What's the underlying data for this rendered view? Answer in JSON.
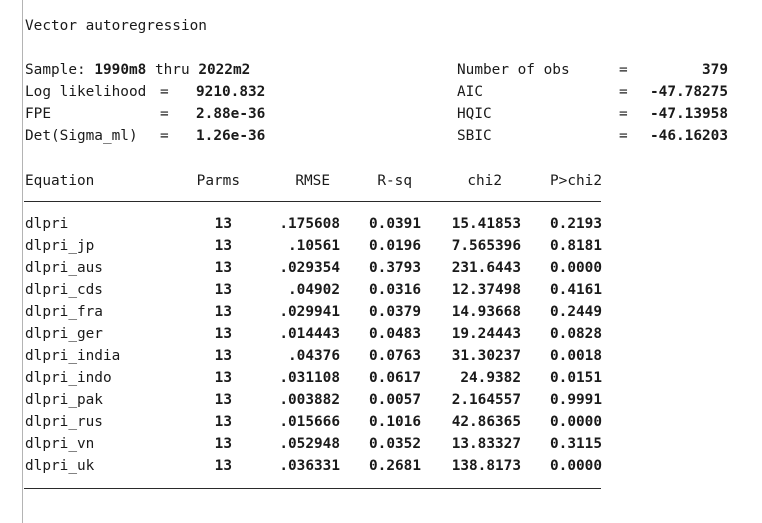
{
  "title": "Vector autoregression",
  "header": {
    "sample_label": "Sample:",
    "sample_start": "1990m8",
    "sample_thru": "thru",
    "sample_end": "2022m2",
    "loglik_label": "Log likelihood",
    "loglik_value": "9210.832",
    "fpe_label": "FPE",
    "fpe_value": "2.88e-36",
    "detsigma_label": "Det(Sigma_ml)",
    "detsigma_value": "1.26e-36",
    "nobs_label": "Number of obs",
    "nobs_value": "379",
    "aic_label": "AIC",
    "aic_value": "-47.78275",
    "hqic_label": "HQIC",
    "hqic_value": "-47.13958",
    "sbic_label": "SBIC",
    "sbic_value": "-46.16203",
    "eq": "="
  },
  "table": {
    "columns": [
      "Equation",
      "Parms",
      "RMSE",
      "R-sq",
      "chi2",
      "P>chi2"
    ],
    "rows": [
      {
        "eq": "dlpri",
        "parms": "13",
        "rmse": ".175608",
        "rsq": "0.0391",
        "chi2": "15.41853",
        "p": "0.2193"
      },
      {
        "eq": "dlpri_jp",
        "parms": "13",
        "rmse": ".10561",
        "rsq": "0.0196",
        "chi2": "7.565396",
        "p": "0.8181"
      },
      {
        "eq": "dlpri_aus",
        "parms": "13",
        "rmse": ".029354",
        "rsq": "0.3793",
        "chi2": "231.6443",
        "p": "0.0000"
      },
      {
        "eq": "dlpri_cds",
        "parms": "13",
        "rmse": ".04902",
        "rsq": "0.0316",
        "chi2": "12.37498",
        "p": "0.4161"
      },
      {
        "eq": "dlpri_fra",
        "parms": "13",
        "rmse": ".029941",
        "rsq": "0.0379",
        "chi2": "14.93668",
        "p": "0.2449"
      },
      {
        "eq": "dlpri_ger",
        "parms": "13",
        "rmse": ".014443",
        "rsq": "0.0483",
        "chi2": "19.24443",
        "p": "0.0828"
      },
      {
        "eq": "dlpri_india",
        "parms": "13",
        "rmse": ".04376",
        "rsq": "0.0763",
        "chi2": "31.30237",
        "p": "0.0018"
      },
      {
        "eq": "dlpri_indo",
        "parms": "13",
        "rmse": ".031108",
        "rsq": "0.0617",
        "chi2": "24.9382",
        "p": "0.0151"
      },
      {
        "eq": "dlpri_pak",
        "parms": "13",
        "rmse": ".003882",
        "rsq": "0.0057",
        "chi2": "2.164557",
        "p": "0.9991"
      },
      {
        "eq": "dlpri_rus",
        "parms": "13",
        "rmse": ".015666",
        "rsq": "0.1016",
        "chi2": "42.86365",
        "p": "0.0000"
      },
      {
        "eq": "dlpri_vn",
        "parms": "13",
        "rmse": ".052948",
        "rsq": "0.0352",
        "chi2": "13.83327",
        "p": "0.3115"
      },
      {
        "eq": "dlpri_uk",
        "parms": "13",
        "rmse": ".036331",
        "rsq": "0.2681",
        "chi2": "138.8173",
        "p": "0.0000"
      }
    ]
  }
}
